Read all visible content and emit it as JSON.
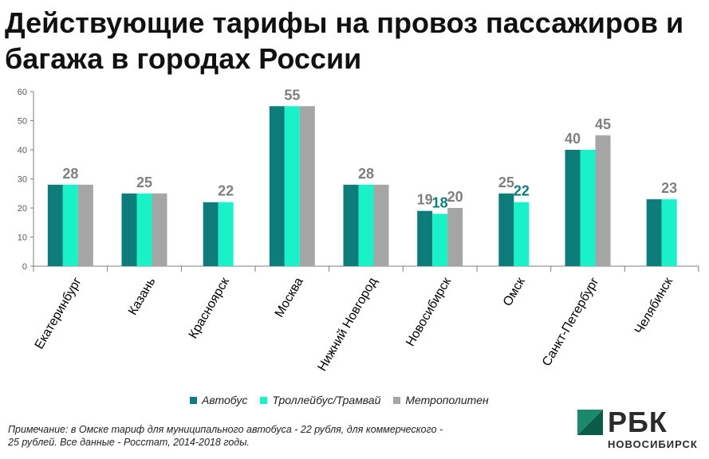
{
  "title": "Действующие тарифы на провоз пассажиров и багажа в городах России",
  "note": "Примечание: в Омске тариф для муниципального автобуса - 22 рубля, для коммерческого - 25 рублей. Все данные - Росстат, 2014-2018 годы.",
  "logo": {
    "main": "РБК",
    "sub": "НОВОСИБИРСК"
  },
  "chart_data": {
    "type": "bar",
    "title": "Действующие тарифы на провоз пассажиров и багажа в городах России",
    "xlabel": "",
    "ylabel": "",
    "ylim": [
      0,
      60
    ],
    "yticks": [
      0,
      10,
      20,
      30,
      40,
      50,
      60
    ],
    "grid": false,
    "legend_position": "bottom",
    "categories": [
      "Екатеринбург",
      "Казань",
      "Красноярск",
      "Москва",
      "Нижний Новгород",
      "Новосибирск",
      "Омск",
      "Санкт-Петербург",
      "Челябинск"
    ],
    "series": [
      {
        "name": "Автобус",
        "color": "#0e7c7b",
        "values": [
          28,
          25,
          22,
          55,
          28,
          19,
          25,
          40,
          23
        ]
      },
      {
        "name": "Троллейбус/Трамвай",
        "color": "#19f2c8",
        "values": [
          28,
          25,
          22,
          55,
          28,
          18,
          22,
          40,
          23
        ]
      },
      {
        "name": "Метрополитен",
        "color": "#a5a5a5",
        "values": [
          28,
          25,
          null,
          55,
          28,
          20,
          null,
          45,
          null
        ]
      }
    ],
    "data_labels": [
      {
        "category": "Екатеринбург",
        "series": "Троллейбус/Трамвай",
        "text": "28",
        "color": "#7f7f7f"
      },
      {
        "category": "Казань",
        "series": "Троллейбус/Трамвай",
        "text": "25",
        "color": "#7f7f7f"
      },
      {
        "category": "Красноярск",
        "series": "Троллейбус/Трамвай",
        "text": "22",
        "color": "#7f7f7f"
      },
      {
        "category": "Москва",
        "series": "Троллейбус/Трамвай",
        "text": "55",
        "color": "#7f7f7f"
      },
      {
        "category": "Нижний Новгород",
        "series": "Троллейбус/Трамвай",
        "text": "28",
        "color": "#7f7f7f"
      },
      {
        "category": "Новосибирск",
        "series": "Автобус",
        "text": "19",
        "color": "#7f7f7f"
      },
      {
        "category": "Новосибирск",
        "series": "Троллейбус/Трамвай",
        "text": "18",
        "color": "#0e7c7b"
      },
      {
        "category": "Новосибирск",
        "series": "Метрополитен",
        "text": "20",
        "color": "#7f7f7f"
      },
      {
        "category": "Омск",
        "series": "Автобус",
        "text": "25",
        "color": "#7f7f7f"
      },
      {
        "category": "Омск",
        "series": "Троллейбус/Трамвай",
        "text": "22",
        "color": "#0e7c7b"
      },
      {
        "category": "Санкт-Петербург",
        "series": "Автобус",
        "text": "40",
        "color": "#7f7f7f"
      },
      {
        "category": "Санкт-Петербург",
        "series": "Метрополитен",
        "text": "45",
        "color": "#7f7f7f"
      },
      {
        "category": "Челябинск",
        "series": "Троллейбус/Трамвай",
        "text": "23",
        "color": "#7f7f7f"
      }
    ]
  }
}
